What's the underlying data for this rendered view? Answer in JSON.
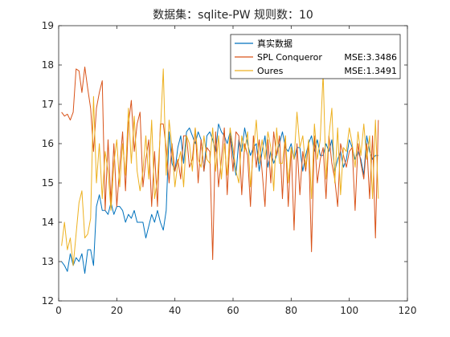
{
  "chart_data": {
    "type": "line",
    "title": "数据集：sqlite-PW   规则数：10",
    "xlabel": "",
    "ylabel": "",
    "xlim": [
      0,
      120
    ],
    "ylim": [
      12,
      19
    ],
    "xticks": [
      0,
      20,
      40,
      60,
      80,
      100,
      120
    ],
    "yticks": [
      12,
      13,
      14,
      15,
      16,
      17,
      18,
      19
    ],
    "grid": false,
    "legend_position": "top-right",
    "series": [
      {
        "name": "真实数据",
        "mse_label": "",
        "color": "#0072BD",
        "x": [
          1,
          2,
          3,
          4,
          5,
          6,
          7,
          8,
          9,
          10,
          11,
          12,
          13,
          14,
          15,
          16,
          17,
          18,
          19,
          20,
          21,
          22,
          23,
          24,
          25,
          26,
          27,
          28,
          29,
          30,
          31,
          32,
          33,
          34,
          35,
          36,
          37,
          38,
          39,
          40,
          41,
          42,
          43,
          44,
          45,
          46,
          47,
          48,
          49,
          50,
          51,
          52,
          53,
          54,
          55,
          56,
          57,
          58,
          59,
          60,
          61,
          62,
          63,
          64,
          65,
          66,
          67,
          68,
          69,
          70,
          71,
          72,
          73,
          74,
          75,
          76,
          77,
          78,
          79,
          80,
          81,
          82,
          83,
          84,
          85,
          86,
          87,
          88,
          89,
          90,
          91,
          92,
          93,
          94,
          95,
          96,
          97,
          98,
          99,
          100,
          101,
          102,
          103,
          104,
          105,
          106,
          107,
          108,
          109,
          110
        ],
        "y": [
          13.0,
          12.9,
          12.75,
          13.2,
          12.9,
          13.1,
          13.0,
          13.2,
          12.7,
          13.3,
          13.3,
          12.9,
          14.4,
          14.7,
          14.3,
          14.3,
          14.2,
          14.5,
          14.2,
          14.4,
          14.4,
          14.3,
          14.0,
          14.2,
          14.1,
          14.3,
          14.0,
          14.0,
          14.0,
          13.6,
          13.9,
          14.2,
          14.0,
          14.3,
          14.0,
          13.8,
          14.3,
          16.3,
          15.5,
          15.3,
          15.9,
          16.2,
          15.5,
          16.3,
          16.4,
          16.2,
          16.0,
          16.3,
          16.1,
          15.3,
          16.2,
          16.3,
          16.1,
          15.8,
          16.5,
          16.3,
          16.2,
          16.0,
          16.3,
          15.7,
          15.2,
          16.1,
          15.8,
          16.4,
          16.0,
          15.7,
          15.9,
          16.0,
          15.3,
          15.8,
          16.2,
          15.4,
          15.8,
          15.5,
          15.7,
          16.0,
          16.3,
          15.9,
          15.8,
          16.0,
          15.6,
          15.9,
          15.9,
          15.3,
          15.7,
          16.0,
          16.2,
          15.8,
          16.1,
          15.7,
          15.7,
          16.0,
          15.8,
          16.1,
          15.3,
          15.6,
          15.8,
          15.4,
          15.6,
          16.1,
          15.9,
          15.6,
          15.8,
          15.6,
          15.2,
          16.2,
          15.8,
          15.6,
          15.7,
          15.7
        ]
      },
      {
        "name": "SPL Conqueror",
        "mse_label": "MSE:3.3486",
        "color": "#D95319",
        "x": [
          1,
          2,
          3,
          4,
          5,
          6,
          7,
          8,
          9,
          10,
          11,
          12,
          13,
          14,
          15,
          16,
          17,
          18,
          19,
          20,
          21,
          22,
          23,
          24,
          25,
          26,
          27,
          28,
          29,
          30,
          31,
          32,
          33,
          34,
          35,
          36,
          37,
          38,
          39,
          40,
          41,
          42,
          43,
          44,
          45,
          46,
          47,
          48,
          49,
          50,
          51,
          52,
          53,
          54,
          55,
          56,
          57,
          58,
          59,
          60,
          61,
          62,
          63,
          64,
          65,
          66,
          67,
          68,
          69,
          70,
          71,
          72,
          73,
          74,
          75,
          76,
          77,
          78,
          79,
          80,
          81,
          82,
          83,
          84,
          85,
          86,
          87,
          88,
          89,
          90,
          91,
          92,
          93,
          94,
          95,
          96,
          97,
          98,
          99,
          100,
          101,
          102,
          103,
          104,
          105,
          106,
          107,
          108,
          109,
          110
        ],
        "y": [
          16.8,
          16.7,
          16.75,
          16.6,
          16.8,
          17.9,
          17.85,
          17.3,
          17.95,
          17.4,
          16.9,
          15.8,
          16.9,
          17.3,
          17.6,
          14.3,
          16.1,
          14.5,
          16.0,
          14.4,
          15.4,
          16.3,
          14.8,
          16.5,
          17.1,
          15.8,
          16.5,
          16.8,
          14.9,
          15.6,
          16.1,
          14.4,
          15.8,
          14.4,
          16.5,
          16.5,
          15.9,
          15.0,
          16.0,
          15.3,
          15.6,
          15.1,
          16.2,
          16.2,
          15.4,
          15.6,
          16.4,
          15.0,
          16.1,
          15.3,
          15.9,
          15.8,
          13.05,
          16.3,
          14.9,
          15.6,
          16.4,
          14.7,
          16.2,
          15.3,
          16.3,
          16.2,
          14.7,
          16.0,
          15.7,
          14.4,
          16.2,
          15.4,
          16.1,
          15.3,
          14.4,
          16.1,
          15.0,
          16.3,
          15.7,
          16.2,
          14.6,
          16.2,
          14.4,
          15.9,
          13.8,
          16.0,
          14.7,
          15.8,
          15.3,
          16.0,
          13.25,
          16.2,
          15.0,
          15.6,
          15.9,
          14.6,
          16.2,
          15.5,
          15.1,
          14.4,
          16.0,
          15.7,
          15.4,
          15.8,
          15.9,
          14.3,
          16.0,
          15.5,
          15.1,
          16.0,
          14.6,
          16.2,
          13.6,
          16.6
        ]
      },
      {
        "name": "Oures",
        "mse_label": "MSE:1.3491",
        "color": "#EDB120",
        "x": [
          1,
          2,
          3,
          4,
          5,
          6,
          7,
          8,
          9,
          10,
          11,
          12,
          13,
          14,
          15,
          16,
          17,
          18,
          19,
          20,
          21,
          22,
          23,
          24,
          25,
          26,
          27,
          28,
          29,
          30,
          31,
          32,
          33,
          34,
          35,
          36,
          37,
          38,
          39,
          40,
          41,
          42,
          43,
          44,
          45,
          46,
          47,
          48,
          49,
          50,
          51,
          52,
          53,
          54,
          55,
          56,
          57,
          58,
          59,
          60,
          61,
          62,
          63,
          64,
          65,
          66,
          67,
          68,
          69,
          70,
          71,
          72,
          73,
          74,
          75,
          76,
          77,
          78,
          79,
          80,
          81,
          82,
          83,
          84,
          85,
          86,
          87,
          88,
          89,
          90,
          91,
          92,
          93,
          94,
          95,
          96,
          97,
          98,
          99,
          100,
          101,
          102,
          103,
          104,
          105,
          106,
          107,
          108,
          109,
          110
        ],
        "y": [
          13.4,
          14.0,
          13.3,
          13.6,
          12.9,
          13.7,
          14.5,
          14.8,
          13.6,
          13.7,
          14.1,
          17.2,
          15.0,
          16.0,
          14.6,
          15.8,
          15.3,
          14.3,
          15.5,
          16.1,
          14.9,
          16.0,
          15.2,
          16.9,
          15.5,
          16.7,
          15.3,
          14.8,
          15.3,
          16.2,
          15.1,
          16.6,
          14.6,
          15.1,
          16.3,
          17.9,
          15.2,
          16.6,
          15.9,
          14.9,
          15.5,
          15.8,
          14.9,
          16.2,
          16.0,
          15.3,
          16.4,
          15.6,
          15.4,
          16.2,
          15.6,
          15.5,
          16.4,
          15.3,
          16.2,
          15.1,
          16.0,
          15.2,
          16.4,
          15.9,
          15.3,
          15.0,
          16.2,
          15.8,
          16.3,
          14.9,
          15.8,
          16.6,
          15.5,
          16.1,
          15.6,
          16.3,
          15.9,
          14.8,
          16.4,
          15.5,
          15.5,
          16.2,
          15.0,
          15.9,
          15.6,
          16.8,
          15.9,
          16.2,
          15.4,
          16.1,
          14.6,
          16.5,
          15.6,
          16.1,
          17.8,
          15.1,
          16.2,
          16.9,
          15.0,
          16.4,
          14.7,
          15.9,
          15.8,
          16.4,
          16.0,
          15.4,
          16.3,
          15.7,
          16.5,
          15.6,
          16.2,
          14.6,
          16.6,
          14.6
        ]
      }
    ]
  }
}
